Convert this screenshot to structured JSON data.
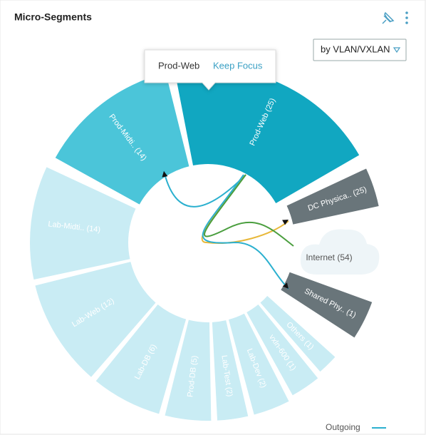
{
  "header": {
    "title": "Micro-Segments",
    "dropdown": "by VLAN/VXLAN"
  },
  "tooltip": {
    "name": "Prod-Web",
    "action": "Keep Focus"
  },
  "segments": [
    "Prod-Midti.. (14)",
    "Prod-Web (25)",
    "DC Physica.. (25)",
    "Shared Phy.. (1)",
    "Others (1)",
    "vxln-600 (1)",
    "Lab-Dev (2)",
    "Lab-Test (2)",
    "Prod-DB (5)",
    "Lab-DB (6)",
    "Lab-Web (12)",
    "Lab-Midti.. (14)"
  ],
  "internet": "Internet (54)",
  "legend": "Outgoing"
}
